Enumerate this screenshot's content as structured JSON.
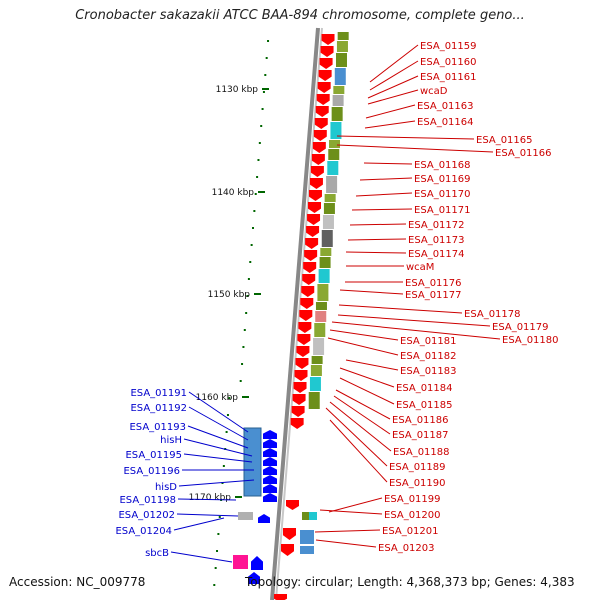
{
  "header": {
    "title": "Cronobacter sakazakii ATCC BAA-894 chromosome, complete geno...",
    "accession": "Accession: NC_009778",
    "topology": "Topology: circular; Length: 4,368,373 bp; Genes: 4,383"
  },
  "colors": {
    "forward_label": "#cc0000",
    "reverse_label": "#0000cc",
    "forward_arrow": "#ff0000",
    "reverse_arrow": "#0000ff",
    "ruler_tick": "#006600",
    "backbone": "#888888"
  },
  "ruler": [
    {
      "label": "1130 kbp"
    },
    {
      "label": "1140 kbp"
    },
    {
      "label": "1150 kbp"
    },
    {
      "label": "1160 kbp"
    },
    {
      "label": "1170 kbp"
    }
  ],
  "forward_genes": [
    {
      "name": "ESA_01159"
    },
    {
      "name": "ESA_01160"
    },
    {
      "name": "ESA_01161"
    },
    {
      "name": "wcaD"
    },
    {
      "name": "ESA_01163"
    },
    {
      "name": "ESA_01164"
    },
    {
      "name": "ESA_01165"
    },
    {
      "name": "ESA_01166"
    },
    {
      "name": "ESA_01168"
    },
    {
      "name": "ESA_01169"
    },
    {
      "name": "ESA_01170"
    },
    {
      "name": "ESA_01171"
    },
    {
      "name": "ESA_01172"
    },
    {
      "name": "ESA_01173"
    },
    {
      "name": "ESA_01174"
    },
    {
      "name": "wcaM"
    },
    {
      "name": "ESA_01176"
    },
    {
      "name": "ESA_01177"
    },
    {
      "name": "ESA_01178"
    },
    {
      "name": "ESA_01179"
    },
    {
      "name": "ESA_01180"
    },
    {
      "name": "ESA_01181"
    },
    {
      "name": "ESA_01182"
    },
    {
      "name": "ESA_01183"
    },
    {
      "name": "ESA_01184"
    },
    {
      "name": "ESA_01185"
    },
    {
      "name": "ESA_01186"
    },
    {
      "name": "ESA_01187"
    },
    {
      "name": "ESA_01188"
    },
    {
      "name": "ESA_01189"
    },
    {
      "name": "ESA_01190"
    },
    {
      "name": "ESA_01199"
    },
    {
      "name": "ESA_01200"
    },
    {
      "name": "ESA_01201"
    },
    {
      "name": "ESA_01203"
    }
  ],
  "reverse_genes": [
    {
      "name": "ESA_01191"
    },
    {
      "name": "ESA_01192"
    },
    {
      "name": "ESA_01193"
    },
    {
      "name": "hisH"
    },
    {
      "name": "ESA_01195"
    },
    {
      "name": "ESA_01196"
    },
    {
      "name": "hisD"
    },
    {
      "name": "ESA_01198"
    },
    {
      "name": "ESA_01202"
    },
    {
      "name": "ESA_01204"
    },
    {
      "name": "sbcB"
    }
  ]
}
